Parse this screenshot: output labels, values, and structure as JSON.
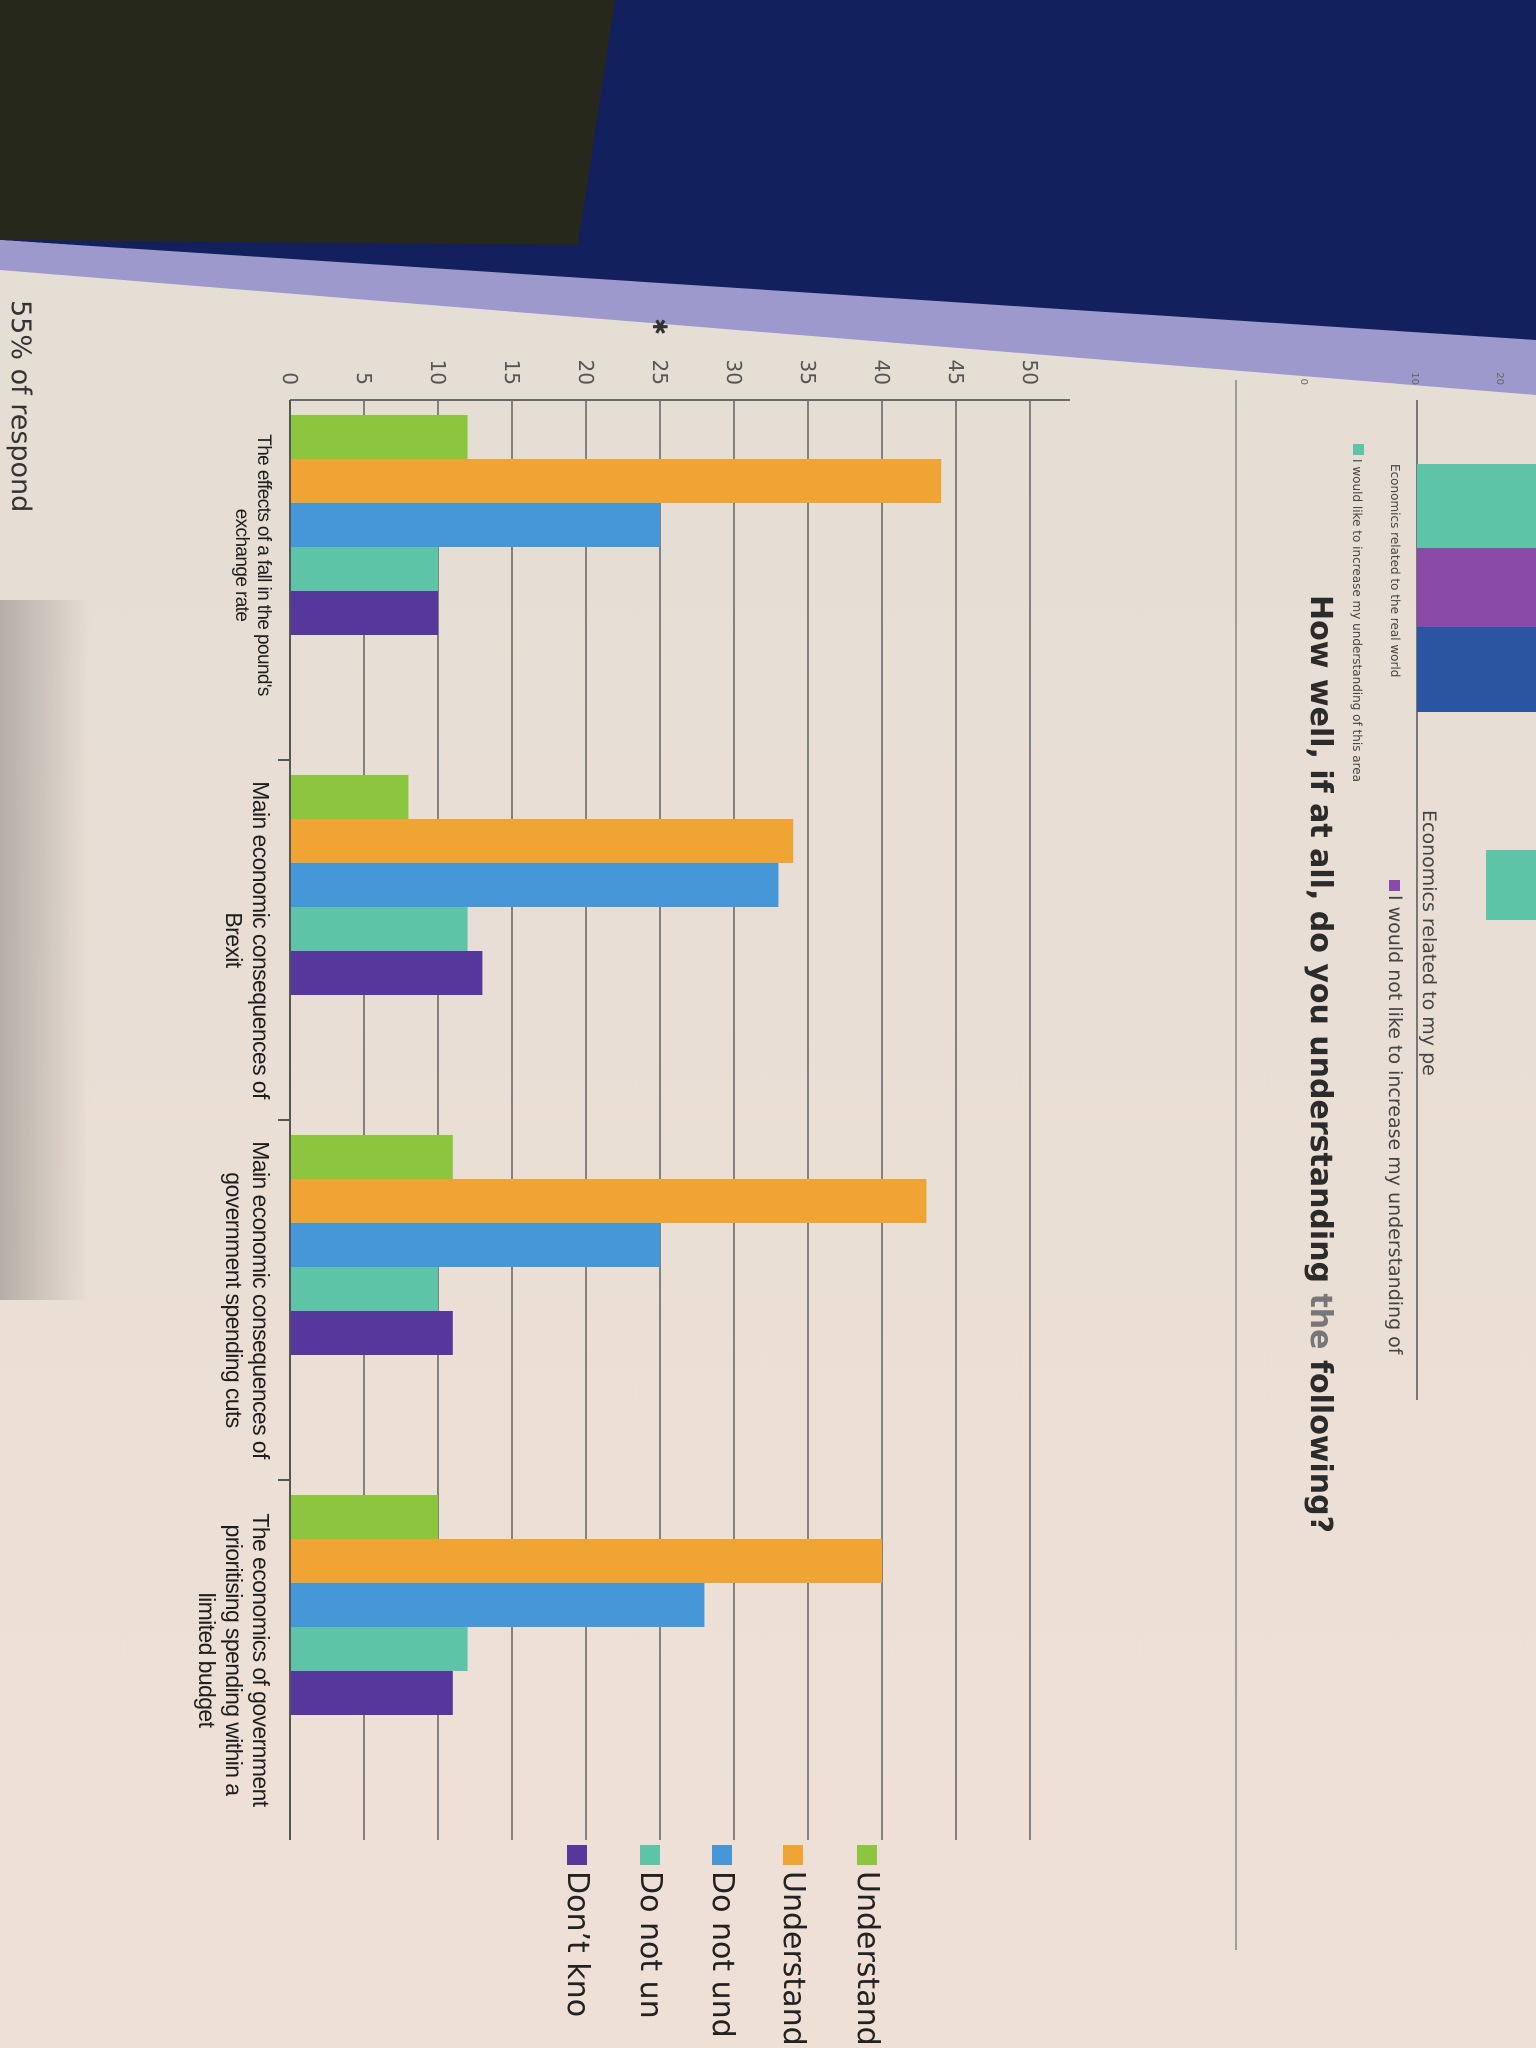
{
  "colors": {
    "understand_well": "#8cc63f",
    "understand_fairly": "#f0a434",
    "do_not_understand_well": "#4597d8",
    "do_not_understand_at_all": "#5ec4a8",
    "dont_know": "#56379c",
    "background_dark": "#26281c",
    "background_navy": "#12205e",
    "page_edge": "#9d99cc",
    "paper": "#e6dfd6"
  },
  "chart_data": {
    "type": "bar",
    "orientation": "horizontal",
    "title": "How well, if at all, do you understanding the following?",
    "title_parts": [
      "How well, if at all, do you understanding ",
      "the",
      " following?"
    ],
    "categories": [
      "The effects of a fall in the pound's exchange rate",
      "Main economic consequences of Brexit",
      "Main economic consequences of government spending cuts",
      "The economics of government prioritising spending within a limited budget"
    ],
    "series": [
      {
        "name": "Understand",
        "values": [
          12,
          8,
          11,
          10
        ]
      },
      {
        "name": "Understand",
        "values": [
          44,
          34,
          43,
          40
        ]
      },
      {
        "name": "Do not und",
        "values": [
          25,
          33,
          25,
          28
        ]
      },
      {
        "name": "Do not un",
        "values": [
          10,
          12,
          10,
          12
        ]
      },
      {
        "name": "Don’t kno",
        "values": [
          10,
          13,
          11,
          11
        ]
      }
    ],
    "ylim": [
      0,
      50
    ],
    "yticks": [
      "0",
      "5",
      "10",
      "15",
      "20",
      "25",
      "30",
      "35",
      "40",
      "45",
      "50"
    ],
    "pen_mark": "✱",
    "grid": true,
    "legend": "bottom"
  },
  "upper_chart": {
    "legend_green": "I would like to increase my understanding of this area",
    "category_1": "Economics related to the real world",
    "category_2": "Economics related to my pe",
    "legend_purple": "I would not like to increase my understanding of",
    "ticks": [
      "0",
      "10",
      "20"
    ]
  },
  "footer_text": "55% of respond"
}
